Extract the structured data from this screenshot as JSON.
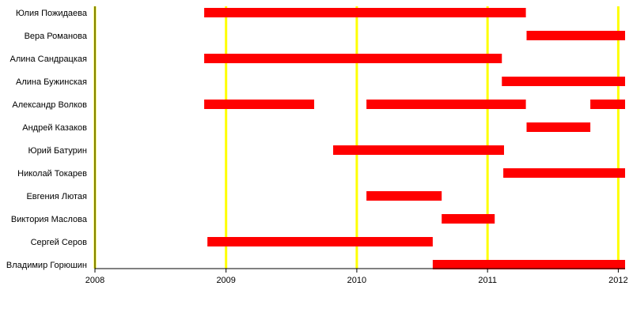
{
  "chart_data": {
    "type": "timeline",
    "title": "",
    "xlabel": "",
    "ylabel": "",
    "xlim": [
      "2008-01-01",
      "2012-01-20"
    ],
    "x_ticks": [
      "2008",
      "2009",
      "2010",
      "2011",
      "2012"
    ],
    "grid": true,
    "colors": {
      "bar": "#ff0000",
      "grid": "#ffff00",
      "axis": "#000000"
    },
    "rows": [
      {
        "name": "Юлия Пожидаева",
        "spans": [
          [
            "2008-11-01",
            "2011-04-18"
          ]
        ]
      },
      {
        "name": "Вера Романова",
        "spans": [
          [
            "2011-04-20",
            "2012-01-20"
          ]
        ]
      },
      {
        "name": "Алина Сандрацкая",
        "spans": [
          [
            "2008-11-01",
            "2011-02-10"
          ]
        ]
      },
      {
        "name": "Алина Бужинская",
        "spans": [
          [
            "2011-02-10",
            "2012-01-20"
          ]
        ]
      },
      {
        "name": "Александр Волков",
        "spans": [
          [
            "2008-11-01",
            "2009-09-04"
          ],
          [
            "2010-01-28",
            "2011-04-18"
          ],
          [
            "2011-10-15",
            "2012-01-20"
          ]
        ]
      },
      {
        "name": "Андрей Казаков",
        "spans": [
          [
            "2011-04-20",
            "2011-10-15"
          ]
        ]
      },
      {
        "name": "Юрий Батурин",
        "spans": [
          [
            "2009-10-27",
            "2011-02-16"
          ]
        ]
      },
      {
        "name": "Николай Токарев",
        "spans": [
          [
            "2011-02-14",
            "2012-01-20"
          ]
        ]
      },
      {
        "name": "Евгения Лютая",
        "spans": [
          [
            "2010-01-28",
            "2010-08-26"
          ]
        ]
      },
      {
        "name": "Виктория Маслова",
        "spans": [
          [
            "2010-08-26",
            "2011-01-21"
          ]
        ]
      },
      {
        "name": "Сергей Серов",
        "spans": [
          [
            "2008-11-10",
            "2010-08-01"
          ]
        ]
      },
      {
        "name": "Владимир Горюшин",
        "spans": [
          [
            "2010-08-01",
            "2012-01-20"
          ]
        ]
      }
    ]
  }
}
